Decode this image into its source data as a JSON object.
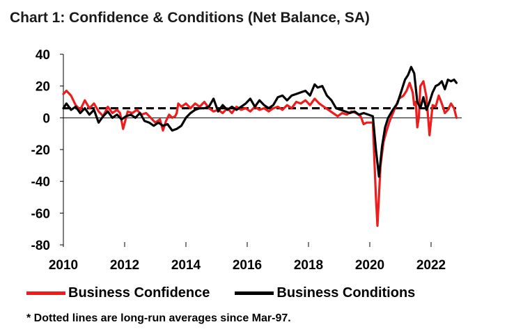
{
  "chart_data": {
    "type": "line",
    "title": "Chart 1: Confidence & Conditions (Net Balance, SA)",
    "xlabel": "",
    "ylabel": "",
    "xlim": [
      2010.0,
      2023.0
    ],
    "ylim": [
      -80,
      40
    ],
    "x_ticks": [
      2010,
      2012,
      2014,
      2016,
      2018,
      2020,
      2022
    ],
    "x_tick_labels": [
      "2010",
      "2012",
      "2014",
      "2016",
      "2018",
      "2020",
      "2022"
    ],
    "y_ticks": [
      40,
      20,
      0,
      -20,
      -40,
      -60,
      -80
    ],
    "y_tick_labels": [
      "40",
      "20",
      "0",
      "-20",
      "-40",
      "-60",
      "-80"
    ],
    "zero_line": true,
    "series": [
      {
        "name": "Business Confidence",
        "color": "#ee1c1c",
        "long_run_average": 6,
        "points": [
          [
            2010.0,
            15
          ],
          [
            2010.1,
            17
          ],
          [
            2010.25,
            14
          ],
          [
            2010.4,
            8
          ],
          [
            2010.55,
            5
          ],
          [
            2010.7,
            11
          ],
          [
            2010.85,
            6
          ],
          [
            2011.0,
            9
          ],
          [
            2011.15,
            4
          ],
          [
            2011.3,
            1
          ],
          [
            2011.45,
            7
          ],
          [
            2011.6,
            3
          ],
          [
            2011.75,
            5
          ],
          [
            2011.85,
            3
          ],
          [
            2011.95,
            -7
          ],
          [
            2012.1,
            4
          ],
          [
            2012.25,
            3
          ],
          [
            2012.4,
            5
          ],
          [
            2012.55,
            2
          ],
          [
            2012.7,
            3
          ],
          [
            2012.85,
            0
          ],
          [
            2013.0,
            -3
          ],
          [
            2013.15,
            -1
          ],
          [
            2013.25,
            -8
          ],
          [
            2013.35,
            -2
          ],
          [
            2013.45,
            2
          ],
          [
            2013.55,
            0
          ],
          [
            2013.65,
            1
          ],
          [
            2013.7,
            3
          ],
          [
            2013.75,
            9
          ],
          [
            2013.85,
            7
          ],
          [
            2014.0,
            9
          ],
          [
            2014.15,
            6
          ],
          [
            2014.3,
            9
          ],
          [
            2014.45,
            7
          ],
          [
            2014.6,
            10
          ],
          [
            2014.75,
            6
          ],
          [
            2014.9,
            4
          ],
          [
            2015.05,
            5
          ],
          [
            2015.2,
            3
          ],
          [
            2015.35,
            6
          ],
          [
            2015.5,
            3
          ],
          [
            2015.65,
            7
          ],
          [
            2015.8,
            5
          ],
          [
            2015.95,
            6
          ],
          [
            2016.1,
            4
          ],
          [
            2016.25,
            7
          ],
          [
            2016.4,
            5
          ],
          [
            2016.55,
            6
          ],
          [
            2016.7,
            4
          ],
          [
            2016.85,
            6
          ],
          [
            2017.0,
            7
          ],
          [
            2017.15,
            5
          ],
          [
            2017.3,
            8
          ],
          [
            2017.45,
            6
          ],
          [
            2017.6,
            10
          ],
          [
            2017.75,
            9
          ],
          [
            2017.9,
            11
          ],
          [
            2018.05,
            8
          ],
          [
            2018.2,
            12
          ],
          [
            2018.35,
            9
          ],
          [
            2018.5,
            7
          ],
          [
            2018.65,
            5
          ],
          [
            2018.8,
            3
          ],
          [
            2018.95,
            1
          ],
          [
            2019.1,
            3
          ],
          [
            2019.25,
            2
          ],
          [
            2019.4,
            4
          ],
          [
            2019.55,
            3
          ],
          [
            2019.7,
            1
          ],
          [
            2019.8,
            -4
          ],
          [
            2019.9,
            -3
          ],
          [
            2020.0,
            -3
          ],
          [
            2020.1,
            -3
          ],
          [
            2020.2,
            -50
          ],
          [
            2020.25,
            -68
          ],
          [
            2020.35,
            -30
          ],
          [
            2020.45,
            -15
          ],
          [
            2020.55,
            -8
          ],
          [
            2020.65,
            -2
          ],
          [
            2020.8,
            5
          ],
          [
            2020.95,
            12
          ],
          [
            2021.1,
            14
          ],
          [
            2021.2,
            17
          ],
          [
            2021.3,
            22
          ],
          [
            2021.4,
            16
          ],
          [
            2021.45,
            8
          ],
          [
            2021.5,
            10
          ],
          [
            2021.55,
            -6
          ],
          [
            2021.6,
            0
          ],
          [
            2021.65,
            20
          ],
          [
            2021.75,
            23
          ],
          [
            2021.85,
            13
          ],
          [
            2021.95,
            -11
          ],
          [
            2022.05,
            8
          ],
          [
            2022.15,
            7
          ],
          [
            2022.25,
            14
          ],
          [
            2022.35,
            9
          ],
          [
            2022.45,
            3
          ],
          [
            2022.55,
            5
          ],
          [
            2022.65,
            9
          ],
          [
            2022.75,
            6
          ],
          [
            2022.83,
            0
          ]
        ]
      },
      {
        "name": "Business Conditions",
        "color": "#000000",
        "long_run_average": 6,
        "points": [
          [
            2010.0,
            6
          ],
          [
            2010.1,
            9
          ],
          [
            2010.25,
            5
          ],
          [
            2010.4,
            7
          ],
          [
            2010.55,
            3
          ],
          [
            2010.7,
            6
          ],
          [
            2010.85,
            2
          ],
          [
            2011.0,
            5
          ],
          [
            2011.15,
            -3
          ],
          [
            2011.3,
            1
          ],
          [
            2011.45,
            4
          ],
          [
            2011.6,
            0
          ],
          [
            2011.75,
            2
          ],
          [
            2011.9,
            -1
          ],
          [
            2012.05,
            1
          ],
          [
            2012.2,
            2
          ],
          [
            2012.35,
            0
          ],
          [
            2012.5,
            3
          ],
          [
            2012.65,
            -2
          ],
          [
            2012.8,
            -3
          ],
          [
            2012.95,
            -5
          ],
          [
            2013.1,
            -3
          ],
          [
            2013.25,
            -5
          ],
          [
            2013.4,
            -4
          ],
          [
            2013.55,
            -8
          ],
          [
            2013.7,
            -7
          ],
          [
            2013.85,
            -5
          ],
          [
            2014.0,
            0
          ],
          [
            2014.15,
            3
          ],
          [
            2014.3,
            5
          ],
          [
            2014.45,
            6
          ],
          [
            2014.6,
            6
          ],
          [
            2014.75,
            7
          ],
          [
            2014.9,
            12
          ],
          [
            2015.05,
            4
          ],
          [
            2015.2,
            8
          ],
          [
            2015.35,
            5
          ],
          [
            2015.5,
            7
          ],
          [
            2015.65,
            5
          ],
          [
            2015.8,
            7
          ],
          [
            2015.95,
            9
          ],
          [
            2016.1,
            12
          ],
          [
            2016.25,
            7
          ],
          [
            2016.4,
            11
          ],
          [
            2016.55,
            8
          ],
          [
            2016.7,
            6
          ],
          [
            2016.85,
            8
          ],
          [
            2017.0,
            13
          ],
          [
            2017.15,
            14
          ],
          [
            2017.3,
            11
          ],
          [
            2017.45,
            14
          ],
          [
            2017.6,
            15
          ],
          [
            2017.75,
            16
          ],
          [
            2017.9,
            17
          ],
          [
            2018.05,
            14
          ],
          [
            2018.2,
            21
          ],
          [
            2018.3,
            19
          ],
          [
            2018.45,
            20
          ],
          [
            2018.6,
            14
          ],
          [
            2018.75,
            11
          ],
          [
            2018.9,
            6
          ],
          [
            2019.05,
            5
          ],
          [
            2019.2,
            4
          ],
          [
            2019.35,
            3
          ],
          [
            2019.5,
            4
          ],
          [
            2019.65,
            2
          ],
          [
            2019.8,
            3
          ],
          [
            2019.95,
            2
          ],
          [
            2020.1,
            1
          ],
          [
            2020.2,
            -20
          ],
          [
            2020.3,
            -37
          ],
          [
            2020.4,
            -18
          ],
          [
            2020.5,
            -6
          ],
          [
            2020.6,
            0
          ],
          [
            2020.75,
            5
          ],
          [
            2020.9,
            9
          ],
          [
            2021.05,
            18
          ],
          [
            2021.15,
            24
          ],
          [
            2021.25,
            27
          ],
          [
            2021.35,
            32
          ],
          [
            2021.45,
            28
          ],
          [
            2021.55,
            10
          ],
          [
            2021.65,
            6
          ],
          [
            2021.75,
            13
          ],
          [
            2021.85,
            5
          ],
          [
            2021.95,
            10
          ],
          [
            2022.05,
            16
          ],
          [
            2022.15,
            20
          ],
          [
            2022.25,
            21
          ],
          [
            2022.35,
            23
          ],
          [
            2022.45,
            18
          ],
          [
            2022.55,
            24
          ],
          [
            2022.65,
            23
          ],
          [
            2022.75,
            24
          ],
          [
            2022.83,
            22
          ]
        ]
      }
    ],
    "legend": [
      "Business Confidence",
      "Business Conditions"
    ],
    "legend_position": "bottom",
    "footnote": "* Dotted lines are long-run averages since Mar-97."
  }
}
